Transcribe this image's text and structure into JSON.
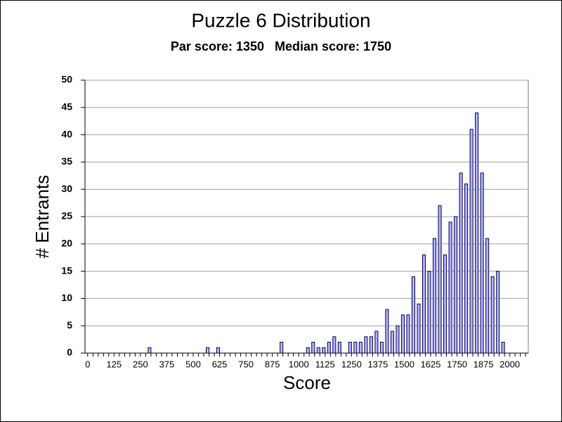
{
  "chart_data": {
    "type": "bar",
    "title": "Puzzle 6 Distribution",
    "subtitle": "Par score: 1350   Median score: 1750",
    "x_label": "Score",
    "y_label": "# Entrants",
    "categories": [
      0,
      null,
      null,
      null,
      null,
      125,
      null,
      null,
      null,
      null,
      250,
      null,
      null,
      null,
      null,
      375,
      null,
      null,
      null,
      null,
      500,
      null,
      null,
      null,
      null,
      625,
      null,
      null,
      null,
      null,
      750,
      null,
      null,
      null,
      null,
      875,
      null,
      null,
      null,
      null,
      1000,
      null,
      null,
      null,
      null,
      1125,
      null,
      null,
      null,
      null,
      1250,
      null,
      null,
      null,
      null,
      1375,
      null,
      null,
      null,
      null,
      1500,
      null,
      null,
      null,
      null,
      1625,
      null,
      null,
      null,
      null,
      1750,
      null,
      null,
      null,
      null,
      1875,
      null,
      null,
      null,
      null,
      2000,
      null,
      null,
      null
    ],
    "values": [
      0,
      0,
      0,
      0,
      0,
      0,
      0,
      0,
      0,
      0,
      0,
      0,
      1,
      0,
      0,
      0,
      0,
      0,
      0,
      0,
      0,
      0,
      0,
      1,
      0,
      1,
      0,
      0,
      0,
      0,
      0,
      0,
      0,
      0,
      0,
      0,
      0,
      2,
      0,
      0,
      0,
      0,
      1,
      2,
      1,
      1,
      2,
      3,
      2,
      0,
      2,
      2,
      2,
      3,
      3,
      4,
      2,
      8,
      4,
      5,
      7,
      7,
      14,
      9,
      18,
      15,
      21,
      27,
      18,
      24,
      25,
      33,
      31,
      41,
      44,
      33,
      21,
      14,
      15,
      2,
      0,
      0,
      0,
      0
    ],
    "color": "#b4b4f0",
    "ylim": [
      0,
      50
    ],
    "yticks": [
      0,
      5,
      10,
      15,
      20,
      25,
      30,
      35,
      40,
      45,
      50
    ],
    "grid": true
  }
}
